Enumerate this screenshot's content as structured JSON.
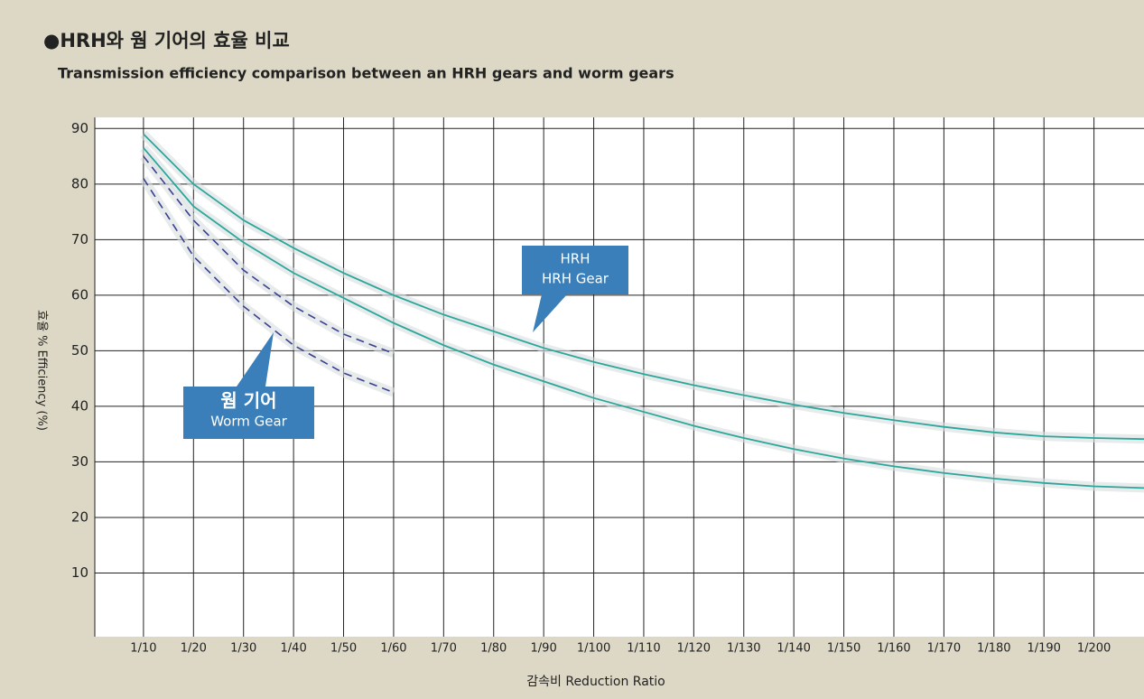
{
  "chart_data": {
    "type": "line",
    "title": "●HRH와 웜 기어의 효율 비교",
    "subtitle": "Transmission efficiency comparison between an HRH gears and worm gears",
    "y_label": "효율 % Efficiency (%)",
    "x_label": "감속비 Reduction Ratio",
    "xlim": [
      0,
      210
    ],
    "ylim": [
      0,
      92
    ],
    "xticks": [
      {
        "value": 10,
        "label": "1/10"
      },
      {
        "value": 20,
        "label": "1/20"
      },
      {
        "value": 30,
        "label": "1/30"
      },
      {
        "value": 40,
        "label": "1/40"
      },
      {
        "value": 50,
        "label": "1/50"
      },
      {
        "value": 60,
        "label": "1/60"
      },
      {
        "value": 70,
        "label": "1/70"
      },
      {
        "value": 80,
        "label": "1/80"
      },
      {
        "value": 90,
        "label": "1/90"
      },
      {
        "value": 100,
        "label": "1/100"
      },
      {
        "value": 110,
        "label": "1/110"
      },
      {
        "value": 120,
        "label": "1/120"
      },
      {
        "value": 130,
        "label": "1/130"
      },
      {
        "value": 140,
        "label": "1/140"
      },
      {
        "value": 150,
        "label": "1/150"
      },
      {
        "value": 160,
        "label": "1/160"
      },
      {
        "value": 170,
        "label": "1/170"
      },
      {
        "value": 180,
        "label": "1/180"
      },
      {
        "value": 190,
        "label": "1/190"
      },
      {
        "value": 200,
        "label": "1/200"
      }
    ],
    "yticks": [
      10,
      20,
      30,
      40,
      50,
      60,
      70,
      80,
      90
    ],
    "grid": true,
    "series": [
      {
        "color": "#2aa79a",
        "dash": false,
        "x": [
          10,
          20,
          30,
          40,
          50,
          60,
          70,
          80,
          90,
          100,
          110,
          120,
          130,
          140,
          150,
          160,
          170,
          180,
          190,
          200,
          210
        ],
        "values": [
          89,
          80,
          73.5,
          68.5,
          64,
          60,
          56.5,
          53.5,
          50.5,
          48,
          45.8,
          43.8,
          42,
          40.3,
          38.8,
          37.5,
          36.3,
          35.3,
          34.6,
          34.3,
          34.1
        ]
      },
      {
        "color": "#2aa79a",
        "dash": false,
        "x": [
          10,
          20,
          30,
          40,
          50,
          60,
          70,
          80,
          90,
          100,
          110,
          120,
          130,
          140,
          150,
          160,
          170,
          180,
          190,
          200,
          210
        ],
        "values": [
          86.5,
          76,
          69.5,
          64,
          59.5,
          55,
          51,
          47.5,
          44.5,
          41.5,
          39,
          36.5,
          34.3,
          32.3,
          30.6,
          29.2,
          28,
          27,
          26.2,
          25.6,
          25.3
        ]
      },
      {
        "color": "#3a3f8f",
        "dash": true,
        "x": [
          10,
          20,
          30,
          40,
          50,
          60
        ],
        "values": [
          85,
          73.5,
          64.5,
          58,
          53,
          49.5
        ]
      },
      {
        "color": "#3a3f8f",
        "dash": true,
        "x": [
          10,
          20,
          30,
          40,
          50,
          60
        ],
        "values": [
          81,
          67,
          58,
          51,
          46,
          42.5
        ]
      }
    ],
    "annotations": [
      {
        "lines": [
          "HRH",
          "HRH Gear"
        ],
        "color": "#3a7fb9"
      },
      {
        "lines": [
          "웜 기어",
          "Worm Gear"
        ],
        "color": "#3a7fb9"
      }
    ]
  }
}
